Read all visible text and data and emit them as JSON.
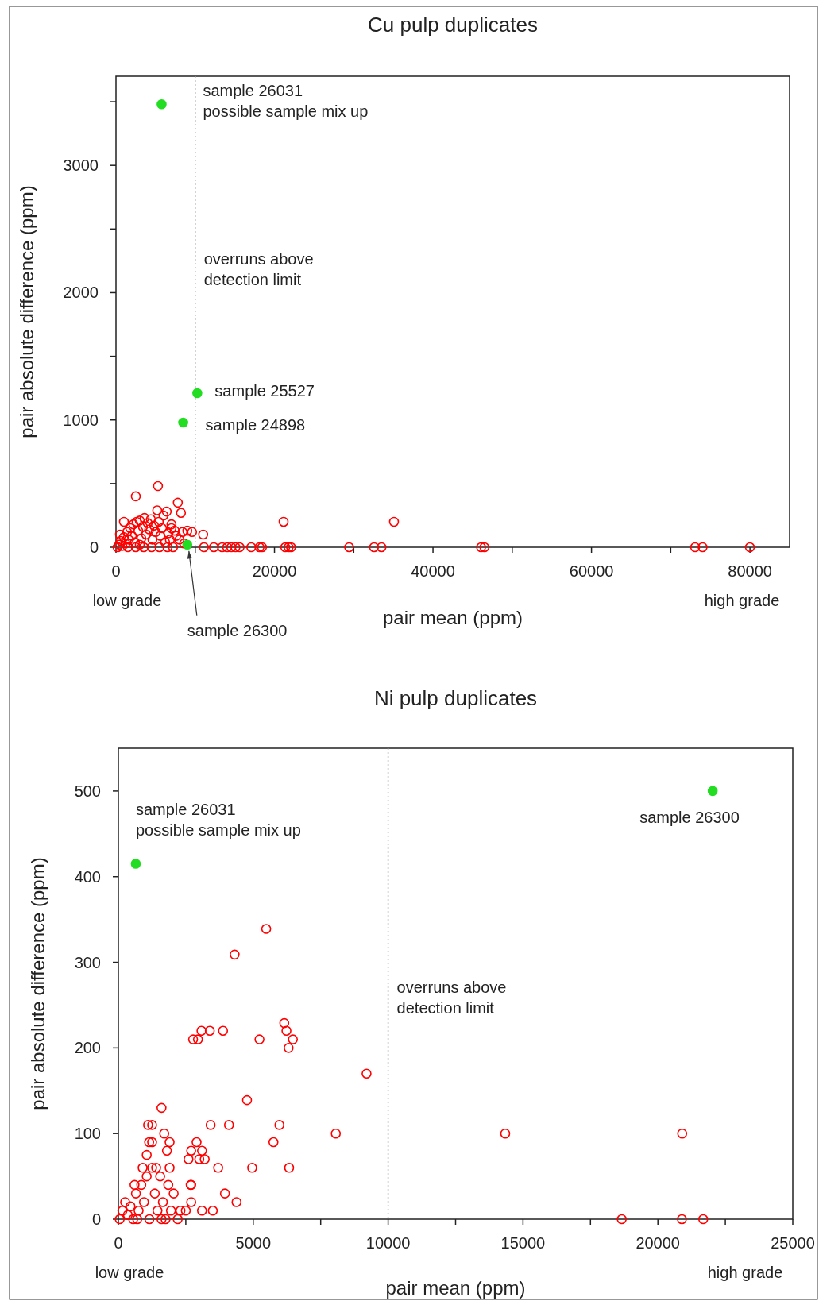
{
  "chart_data": [
    {
      "type": "scatter",
      "title": "Cu pulp duplicates",
      "xlabel": "pair mean (ppm)",
      "ylabel": "pair absolute difference (ppm)",
      "xlim": [
        0,
        85000
      ],
      "ylim": [
        0,
        3700
      ],
      "xticks": [
        0,
        {
          "value": 10000,
          "label": null
        },
        20000,
        {
          "value": 30000,
          "label": null
        },
        40000,
        {
          "value": 50000,
          "label": null
        },
        60000,
        {
          "value": 70000,
          "label": null
        },
        80000
      ],
      "yticks": [
        0,
        {
          "value": 500,
          "label": null
        },
        1000,
        {
          "value": 1500,
          "label": null
        },
        2000,
        {
          "value": 2500,
          "label": null
        },
        3000,
        {
          "value": 3500,
          "label": null
        }
      ],
      "grid": false,
      "marker": "circle",
      "series": [
        {
          "color": "#ff0000",
          "x": [
            200,
            400,
            600,
            800,
            1000,
            1200,
            1400,
            1600,
            1800,
            2000,
            2200,
            2400,
            2600,
            2800,
            3000,
            3200,
            3400,
            3600,
            3800,
            4000,
            4200,
            4400,
            4600,
            4800,
            5000,
            5200,
            5400,
            5600,
            5800,
            6000,
            6200,
            6400,
            6600,
            6800,
            7000,
            7200,
            7400,
            7600,
            7800,
            8000,
            8200,
            8400,
            8600,
            9000,
            9600,
            11000,
            2500,
            5300,
            7000,
            3000,
            1000,
            500,
            1500,
            2500,
            3500,
            4500,
            5500,
            6500,
            21150,
            35080,
            11100,
            12350,
            13400,
            14030,
            14550,
            15080,
            15600,
            17070,
            18110,
            18430,
            21360,
            21780,
            22090,
            29420,
            32560,
            33500,
            46070,
            46490,
            73080,
            74020,
            79990
          ],
          "values": [
            0,
            20,
            50,
            10,
            80,
            30,
            120,
            60,
            150,
            90,
            180,
            40,
            200,
            130,
            210,
            70,
            160,
            230,
            100,
            190,
            140,
            220,
            60,
            170,
            120,
            290,
            200,
            90,
            150,
            250,
            40,
            280,
            110,
            60,
            180,
            0,
            130,
            90,
            350,
            60,
            270,
            120,
            30,
            130,
            120,
            100,
            400,
            480,
            150,
            20,
            200,
            100,
            0,
            0,
            0,
            0,
            0,
            0,
            200,
            200,
            0,
            0,
            0,
            0,
            0,
            0,
            0,
            0,
            0,
            0,
            0,
            0,
            0,
            0,
            0,
            0,
            0,
            0,
            0,
            0,
            0
          ]
        },
        {
          "color": "#22dd22",
          "x": [
            5760,
            10260,
            8480,
            9000
          ],
          "values": [
            3480,
            1210,
            980,
            20
          ]
        }
      ],
      "ref_lines": [
        {
          "axis": "x",
          "value": 10000,
          "label": "overruns above detection limit",
          "line_style": "dotted",
          "color": "#aaaaaa"
        }
      ],
      "annotations": [
        {
          "text": "sample 26031\npossible sample mix up",
          "x": 5760,
          "y": 3480
        },
        {
          "text": "sample 25527",
          "x": 10260,
          "y": 1210
        },
        {
          "text": "sample 24898",
          "x": 8480,
          "y": 980
        },
        {
          "text": "sample 26300",
          "x": 9000,
          "y": 20
        },
        "low grade",
        "high grade"
      ]
    },
    {
      "type": "scatter",
      "title": "Ni pulp duplicates",
      "xlabel": "pair mean (ppm)",
      "ylabel": "pair absolute difference (ppm)",
      "xlim": [
        0,
        25000
      ],
      "ylim": [
        0,
        550
      ],
      "xticks": [
        0,
        {
          "value": 2500,
          "label": null
        },
        5000,
        {
          "value": 7500,
          "label": null
        },
        10000,
        {
          "value": 12500,
          "label": null
        },
        15000,
        {
          "value": 17500,
          "label": null
        },
        20000,
        {
          "value": 22500,
          "label": null
        },
        25000
      ],
      "yticks": [
        0,
        100,
        200,
        300,
        400,
        500
      ],
      "grid": false,
      "marker": "circle",
      "series": [
        {
          "color": "#ff0000",
          "x": [
            5480,
            4310,
            6150,
            6230,
            6470,
            6310,
            5230,
            2770,
            2950,
            3080,
            3390,
            3880,
            9200,
            4770,
            1600,
            3420,
            4100,
            5970,
            8060,
            14340,
            20900,
            5750,
            1140,
            3700,
            4960,
            6330,
            3950,
            4380,
            2680,
            18660,
            20890,
            21680,
            50,
            150,
            250,
            350,
            450,
            550,
            650,
            750,
            850,
            950,
            1050,
            1150,
            1250,
            1350,
            1450,
            1550,
            1650,
            1750,
            1850,
            1950,
            2050,
            2300,
            2500,
            2700,
            3100,
            3500,
            1050,
            1250,
            1700,
            1900,
            1800,
            1400,
            1100,
            900,
            600,
            2700,
            2900,
            3100,
            2600,
            3000,
            3200,
            1600,
            700,
            2200,
            2700,
            1900,
            1250
          ],
          "values": [
            339,
            309,
            229,
            220,
            210,
            200,
            210,
            210,
            210,
            220,
            220,
            220,
            170,
            139,
            130,
            110,
            110,
            110,
            100,
            100,
            100,
            90,
            90,
            60,
            60,
            60,
            30,
            20,
            40,
            0,
            0,
            0,
            0,
            10,
            20,
            5,
            15,
            0,
            30,
            10,
            40,
            20,
            50,
            0,
            60,
            30,
            10,
            50,
            20,
            0,
            40,
            10,
            30,
            10,
            10,
            20,
            10,
            10,
            75,
            90,
            100,
            90,
            80,
            60,
            110,
            60,
            40,
            80,
            90,
            80,
            70,
            70,
            70,
            0,
            0,
            0,
            40,
            60,
            110
          ]
        },
        {
          "color": "#22dd22",
          "x": [
            22030,
            646
          ],
          "values": [
            500,
            415
          ]
        }
      ],
      "ref_lines": [
        {
          "axis": "x",
          "value": 10000,
          "label": "overruns above detection limit",
          "line_style": "dotted",
          "color": "#aaaaaa"
        }
      ],
      "annotations": [
        {
          "text": "sample 26031\npossible sample mix up",
          "x": 646,
          "y": 415
        },
        {
          "text": "sample 26300",
          "x": 22030,
          "y": 500
        },
        "low grade",
        "high grade"
      ]
    }
  ]
}
